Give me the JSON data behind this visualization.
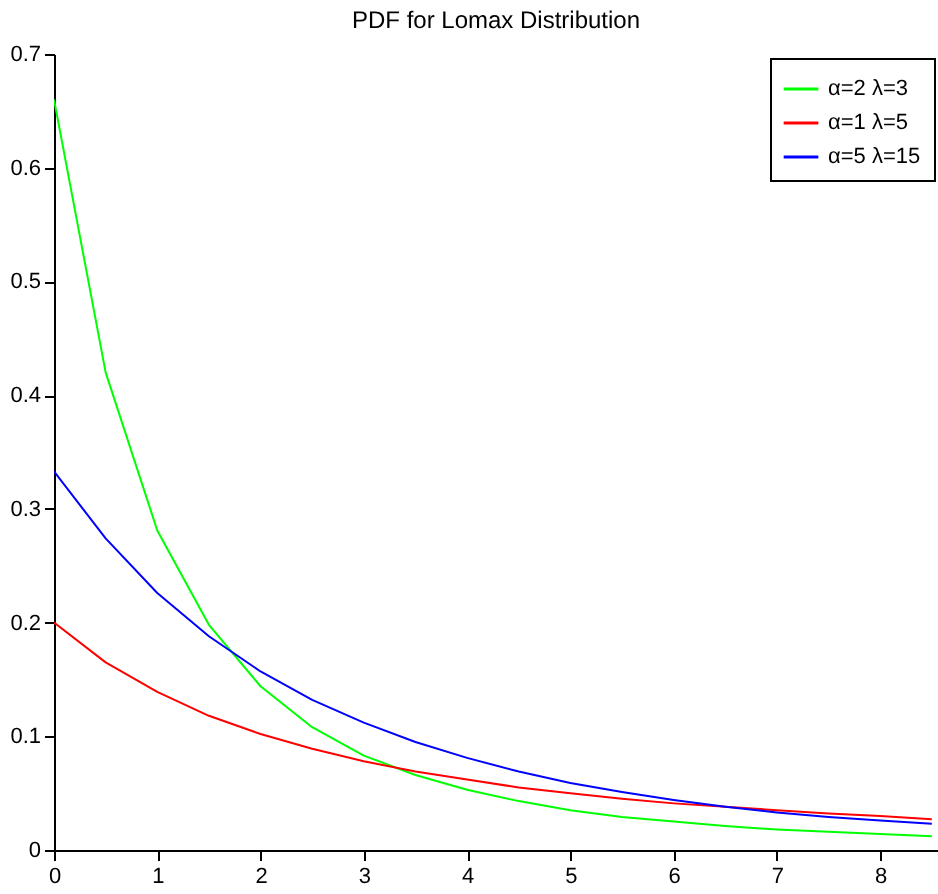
{
  "chart_data": {
    "type": "line",
    "title": "PDF for Lomax Distribution",
    "x": [
      0,
      0.5,
      1,
      1.5,
      2,
      2.5,
      3,
      3.5,
      4,
      4.5,
      5,
      5.5,
      6,
      6.5,
      7,
      7.5,
      8,
      8.5
    ],
    "series": [
      {
        "name": "α=2 λ=3",
        "color": "#00ff00",
        "values": [
          0.66,
          0.42,
          0.281,
          0.198,
          0.144,
          0.108,
          0.083,
          0.066,
          0.053,
          0.043,
          0.035,
          0.029,
          0.025,
          0.021,
          0.018,
          0.016,
          0.014,
          0.012
        ]
      },
      {
        "name": "α=1 λ=5",
        "color": "#ff0000",
        "values": [
          0.2,
          0.165,
          0.139,
          0.118,
          0.102,
          0.089,
          0.078,
          0.069,
          0.062,
          0.055,
          0.05,
          0.045,
          0.041,
          0.038,
          0.035,
          0.032,
          0.03,
          0.027
        ]
      },
      {
        "name": "α=5 λ=15",
        "color": "#0000ff",
        "values": [
          0.333,
          0.274,
          0.226,
          0.188,
          0.157,
          0.132,
          0.112,
          0.095,
          0.081,
          0.069,
          0.059,
          0.051,
          0.044,
          0.038,
          0.033,
          0.029,
          0.026,
          0.023
        ]
      }
    ],
    "xlim": [
      0,
      8.56
    ],
    "xticks": [
      0,
      1,
      2,
      3,
      4,
      5,
      6,
      7,
      8
    ],
    "ylim": [
      0,
      0.7
    ],
    "yticks": [
      0,
      0.1,
      0.2,
      0.3,
      0.4,
      0.5,
      0.6,
      0.7
    ],
    "grid": false,
    "legend": "top right"
  }
}
